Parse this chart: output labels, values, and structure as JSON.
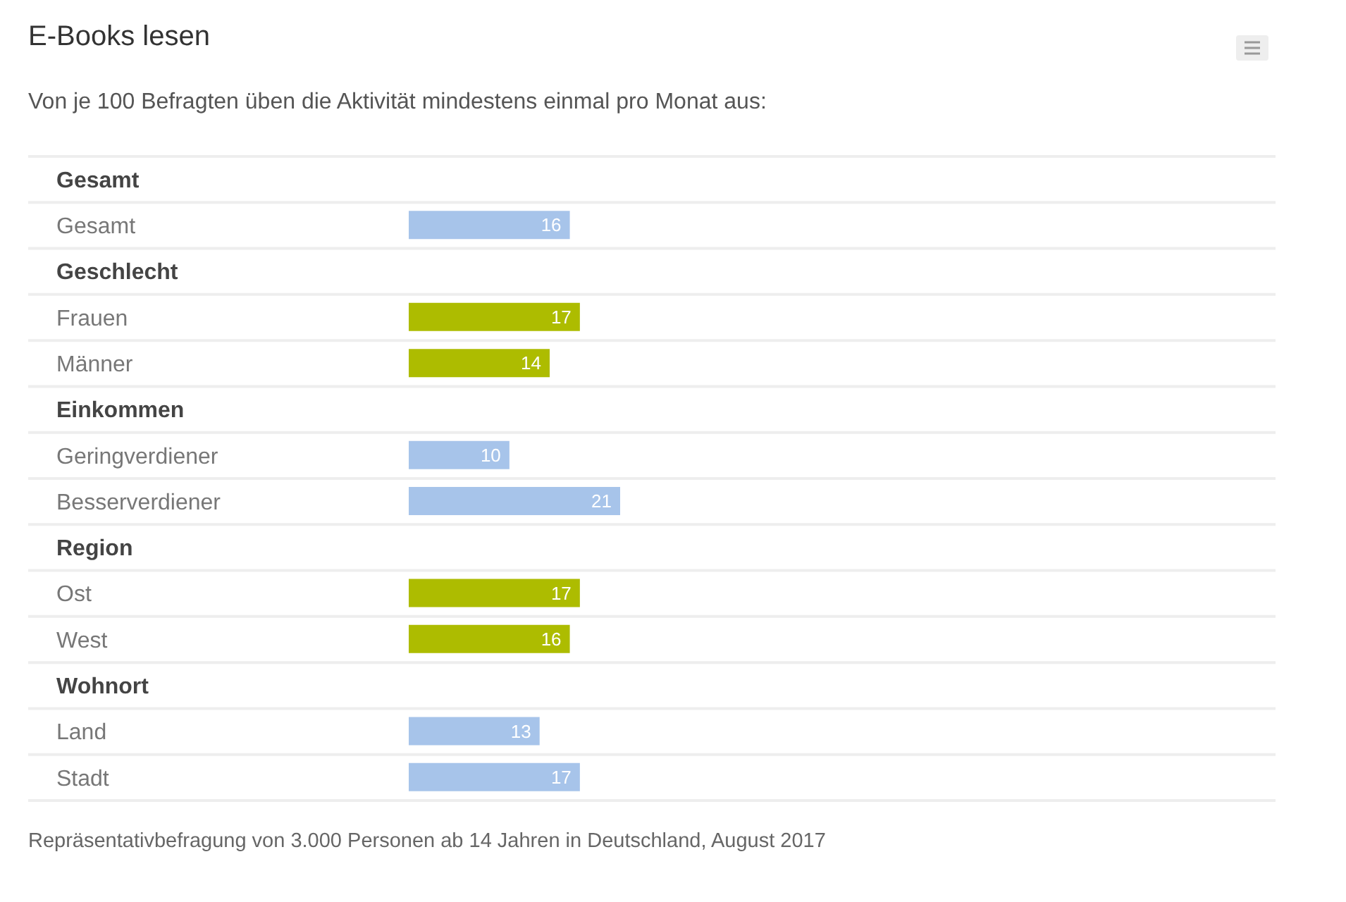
{
  "chart_data": {
    "type": "bar",
    "orientation": "horizontal",
    "title": "E-Books lesen",
    "subtitle": "Von je 100 Befragten üben die Aktivität mindestens einmal pro Monat aus:",
    "categories": [
      "Gesamt",
      "Gesamt",
      "Geschlecht",
      "Frauen",
      "Männer",
      "Einkommen",
      "Geringverdiener",
      "Besserverdiener",
      "Region",
      "Ost",
      "West",
      "Wohnort",
      "Land",
      "Stadt"
    ],
    "values": [
      null,
      16,
      null,
      17,
      14,
      null,
      10,
      21,
      null,
      17,
      16,
      null,
      13,
      17
    ],
    "colors": [
      null,
      "#a7c4ea",
      null,
      "#adbc00",
      "#adbc00",
      null,
      "#a7c4ea",
      "#a7c4ea",
      null,
      "#adbc00",
      "#adbc00",
      null,
      "#a7c4ea",
      "#a7c4ea"
    ],
    "data_labels": true,
    "grid": "y",
    "annotations": [
      "Repräsentativbefragung von 3.000 Personen ab 14 Jahren in Deutschland, August 2017"
    ]
  }
}
